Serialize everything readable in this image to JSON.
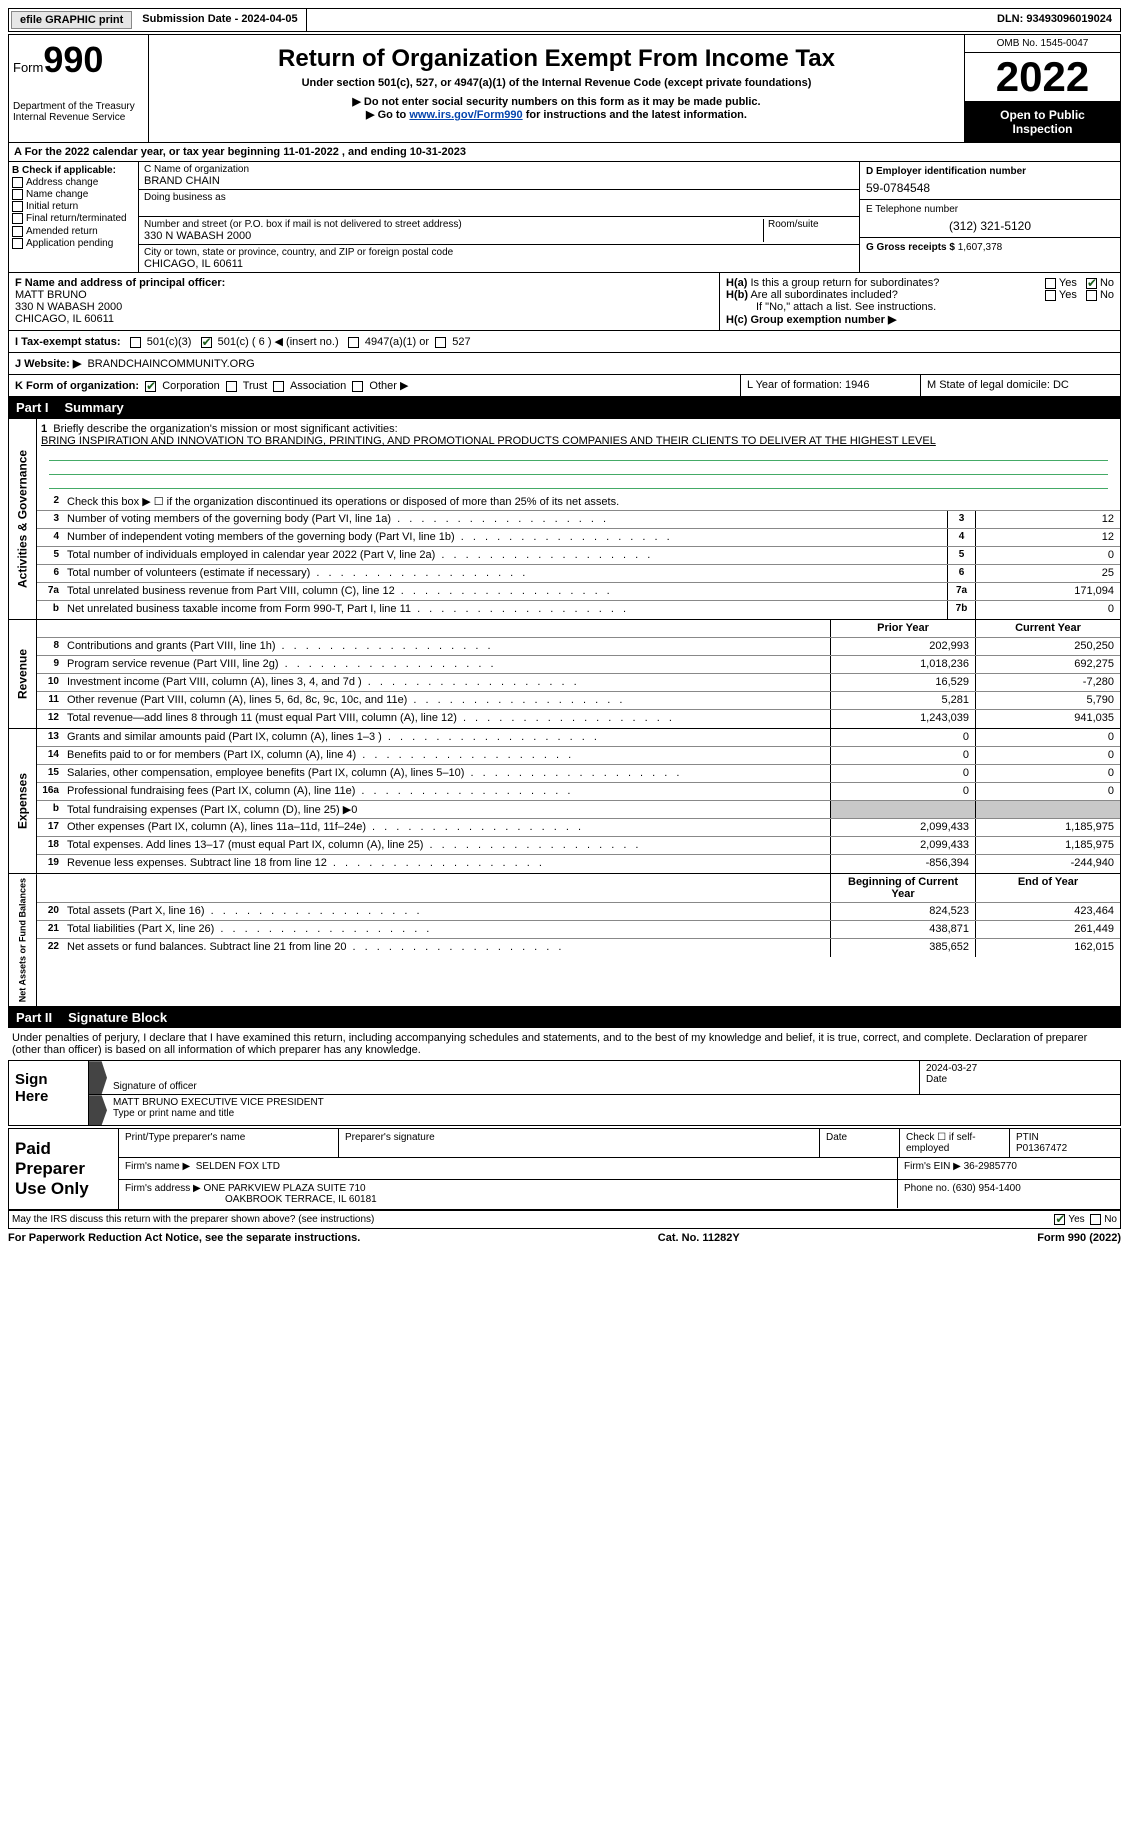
{
  "top": {
    "efile": "efile GRAPHIC print",
    "submission": "Submission Date - 2024-04-05",
    "dln": "DLN: 93493096019024"
  },
  "header": {
    "form_word": "Form",
    "form_num": "990",
    "title": "Return of Organization Exempt From Income Tax",
    "subtitle": "Under section 501(c), 527, or 4947(a)(1) of the Internal Revenue Code (except private foundations)",
    "note1": "▶ Do not enter social security numbers on this form as it may be made public.",
    "note2_pre": "▶ Go to ",
    "note2_link": "www.irs.gov/Form990",
    "note2_post": " for instructions and the latest information.",
    "dept": "Department of the Treasury",
    "irs": "Internal Revenue Service",
    "omb": "OMB No. 1545-0047",
    "year": "2022",
    "open": "Open to Public Inspection"
  },
  "boxA": "A For the 2022 calendar year, or tax year beginning 11-01-2022   , and ending 10-31-2023",
  "boxB": {
    "label": "B Check if applicable:",
    "opts": [
      "Address change",
      "Name change",
      "Initial return",
      "Final return/terminated",
      "Amended return",
      "Application pending"
    ]
  },
  "boxC": {
    "name_lbl": "C Name of organization",
    "name": "BRAND CHAIN",
    "dba_lbl": "Doing business as",
    "addr_lbl": "Number and street (or P.O. box if mail is not delivered to street address)",
    "room_lbl": "Room/suite",
    "addr": "330 N WABASH 2000",
    "city_lbl": "City or town, state or province, country, and ZIP or foreign postal code",
    "city": "CHICAGO, IL  60611"
  },
  "boxD": {
    "lbl": "D Employer identification number",
    "val": "59-0784548"
  },
  "boxE": {
    "lbl": "E Telephone number",
    "val": "(312) 321-5120"
  },
  "boxG": {
    "lbl": "G Gross receipts $",
    "val": "1,607,378"
  },
  "boxF": {
    "lbl": "F  Name and address of principal officer:",
    "name": "MATT BRUNO",
    "addr1": "330 N WABASH 2000",
    "addr2": "CHICAGO, IL  60611"
  },
  "boxH": {
    "a_lbl": "H(a)  Is this a group return for subordinates?",
    "b_lbl": "H(b)  Are all subordinates included?",
    "b_note": "If \"No,\" attach a list. See instructions.",
    "c_lbl": "H(c)  Group exemption number ▶",
    "yes": "Yes",
    "no": "No"
  },
  "boxI": {
    "lbl": "I   Tax-exempt status:",
    "c3": "501(c)(3)",
    "c_pre": "501(c) (",
    "c_num": "6",
    "c_post": ") ◀ (insert no.)",
    "a1": "4947(a)(1) or",
    "527": "527"
  },
  "boxJ": {
    "lbl": "J  Website: ▶",
    "val": "BRANDCHAINCOMMUNITY.ORG"
  },
  "boxK": {
    "lbl": "K Form of organization:",
    "opts": [
      "Corporation",
      "Trust",
      "Association",
      "Other ▶"
    ],
    "L": "L Year of formation: 1946",
    "M": "M State of legal domicile: DC"
  },
  "part1": {
    "num": "Part I",
    "title": "Summary"
  },
  "summary": {
    "q1_lbl": "Briefly describe the organization's mission or most significant activities:",
    "q1_val": "BRING INSPIRATION AND INNOVATION TO BRANDING, PRINTING, AND PROMOTIONAL PRODUCTS COMPANIES AND THEIR CLIENTS TO DELIVER AT THE HIGHEST LEVEL",
    "q2": "Check this box ▶ ☐ if the organization discontinued its operations or disposed of more than 25% of its net assets.",
    "vert1": "Activities & Governance",
    "vert2": "Revenue",
    "vert3": "Expenses",
    "vert4": "Net Assets or Fund Balances",
    "hdr_prior": "Prior Year",
    "hdr_curr": "Current Year",
    "hdr_boy": "Beginning of Current Year",
    "hdr_eoy": "End of Year",
    "lines_gov": [
      {
        "n": "3",
        "t": "Number of voting members of the governing body (Part VI, line 1a)",
        "box": "3",
        "v": "12"
      },
      {
        "n": "4",
        "t": "Number of independent voting members of the governing body (Part VI, line 1b)",
        "box": "4",
        "v": "12"
      },
      {
        "n": "5",
        "t": "Total number of individuals employed in calendar year 2022 (Part V, line 2a)",
        "box": "5",
        "v": "0"
      },
      {
        "n": "6",
        "t": "Total number of volunteers (estimate if necessary)",
        "box": "6",
        "v": "25"
      },
      {
        "n": "7a",
        "t": "Total unrelated business revenue from Part VIII, column (C), line 12",
        "box": "7a",
        "v": "171,094"
      },
      {
        "n": "b",
        "t": "Net unrelated business taxable income from Form 990-T, Part I, line 11",
        "box": "7b",
        "v": "0"
      }
    ],
    "lines_rev": [
      {
        "n": "8",
        "t": "Contributions and grants (Part VIII, line 1h)",
        "p": "202,993",
        "c": "250,250"
      },
      {
        "n": "9",
        "t": "Program service revenue (Part VIII, line 2g)",
        "p": "1,018,236",
        "c": "692,275"
      },
      {
        "n": "10",
        "t": "Investment income (Part VIII, column (A), lines 3, 4, and 7d )",
        "p": "16,529",
        "c": "-7,280"
      },
      {
        "n": "11",
        "t": "Other revenue (Part VIII, column (A), lines 5, 6d, 8c, 9c, 10c, and 11e)",
        "p": "5,281",
        "c": "5,790"
      },
      {
        "n": "12",
        "t": "Total revenue—add lines 8 through 11 (must equal Part VIII, column (A), line 12)",
        "p": "1,243,039",
        "c": "941,035"
      }
    ],
    "lines_exp": [
      {
        "n": "13",
        "t": "Grants and similar amounts paid (Part IX, column (A), lines 1–3 )",
        "p": "0",
        "c": "0"
      },
      {
        "n": "14",
        "t": "Benefits paid to or for members (Part IX, column (A), line 4)",
        "p": "0",
        "c": "0"
      },
      {
        "n": "15",
        "t": "Salaries, other compensation, employee benefits (Part IX, column (A), lines 5–10)",
        "p": "0",
        "c": "0"
      },
      {
        "n": "16a",
        "t": "Professional fundraising fees (Part IX, column (A), line 11e)",
        "p": "0",
        "c": "0"
      },
      {
        "n": "b",
        "t": "Total fundraising expenses (Part IX, column (D), line 25) ▶0",
        "p": "",
        "c": "",
        "shaded": true
      },
      {
        "n": "17",
        "t": "Other expenses (Part IX, column (A), lines 11a–11d, 11f–24e)",
        "p": "2,099,433",
        "c": "1,185,975"
      },
      {
        "n": "18",
        "t": "Total expenses. Add lines 13–17 (must equal Part IX, column (A), line 25)",
        "p": "2,099,433",
        "c": "1,185,975"
      },
      {
        "n": "19",
        "t": "Revenue less expenses. Subtract line 18 from line 12",
        "p": "-856,394",
        "c": "-244,940"
      }
    ],
    "lines_net": [
      {
        "n": "20",
        "t": "Total assets (Part X, line 16)",
        "p": "824,523",
        "c": "423,464"
      },
      {
        "n": "21",
        "t": "Total liabilities (Part X, line 26)",
        "p": "438,871",
        "c": "261,449"
      },
      {
        "n": "22",
        "t": "Net assets or fund balances. Subtract line 21 from line 20",
        "p": "385,652",
        "c": "162,015"
      }
    ]
  },
  "part2": {
    "num": "Part II",
    "title": "Signature Block"
  },
  "sig": {
    "declare": "Under penalties of perjury, I declare that I have examined this return, including accompanying schedules and statements, and to the best of my knowledge and belief, it is true, correct, and complete. Declaration of preparer (other than officer) is based on all information of which preparer has any knowledge.",
    "sign_here": "Sign Here",
    "sig_officer": "Signature of officer",
    "date": "2024-03-27",
    "date_lbl": "Date",
    "name": "MATT BRUNO  EXECUTIVE VICE PRESIDENT",
    "name_lbl": "Type or print name and title"
  },
  "prep": {
    "title": "Paid Preparer Use Only",
    "h1": "Print/Type preparer's name",
    "h2": "Preparer's signature",
    "h3": "Date",
    "h4_pre": "Check ☐ if self-employed",
    "h5": "PTIN",
    "ptin": "P01367472",
    "firm_lbl": "Firm's name   ▶",
    "firm": "SELDEN FOX LTD",
    "ein_lbl": "Firm's EIN ▶",
    "ein": "36-2985770",
    "addr_lbl": "Firm's address ▶",
    "addr1": "ONE PARKVIEW PLAZA SUITE 710",
    "addr2": "OAKBROOK TERRACE, IL  60181",
    "phone_lbl": "Phone no.",
    "phone": "(630) 954-1400"
  },
  "discuss": {
    "q": "May the IRS discuss this return with the preparer shown above? (see instructions)",
    "yes": "Yes",
    "no": "No"
  },
  "footer": {
    "pra": "For Paperwork Reduction Act Notice, see the separate instructions.",
    "cat": "Cat. No. 11282Y",
    "form": "Form 990 (2022)"
  },
  "colors": {
    "link": "#0645ad",
    "check": "#1a5c1a"
  }
}
